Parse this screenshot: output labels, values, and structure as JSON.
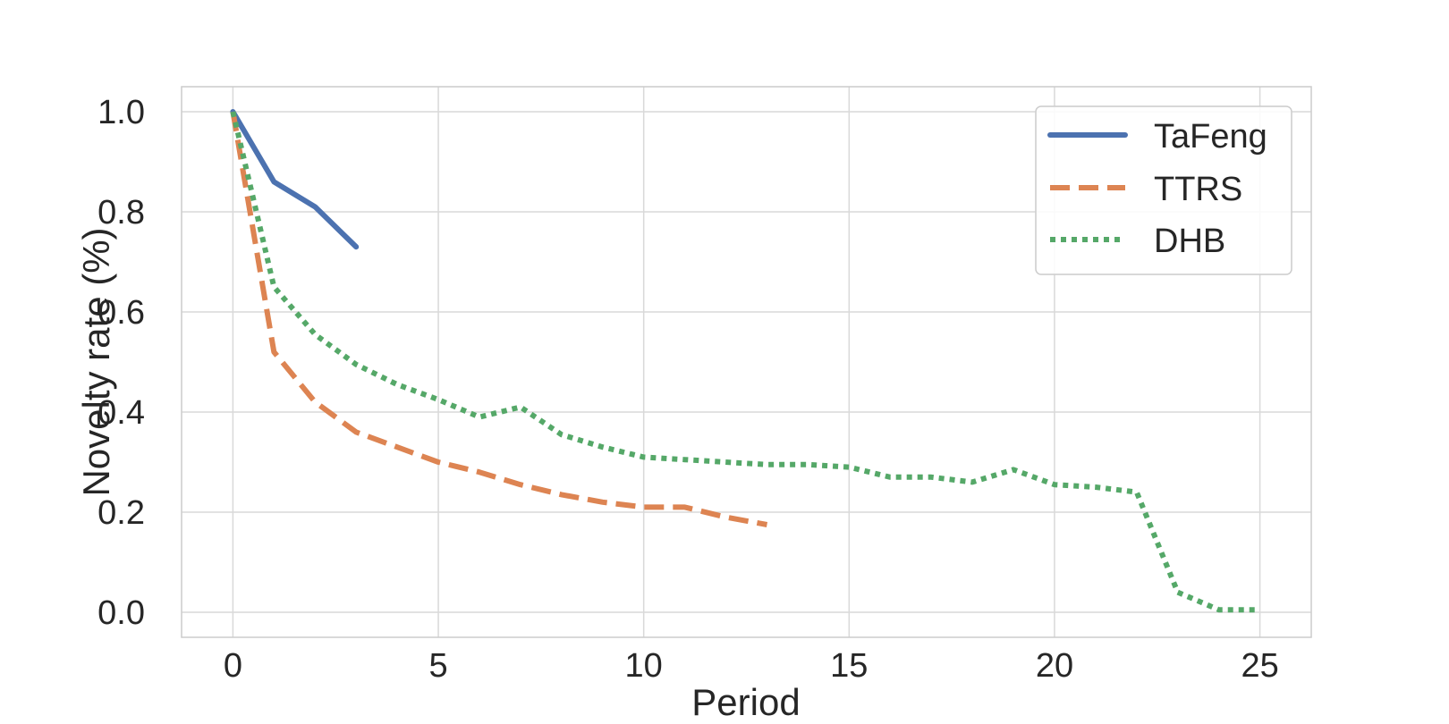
{
  "chart_data": {
    "type": "line",
    "xlabel": "Period",
    "ylabel": "Novelty rate (%)",
    "xlim": [
      -1.25,
      26.25
    ],
    "ylim": [
      -0.05,
      1.05
    ],
    "xticks": [
      0,
      5,
      10,
      15,
      20,
      25
    ],
    "yticks": [
      0.0,
      0.2,
      0.4,
      0.6,
      0.8,
      1.0
    ],
    "xtick_labels": [
      "0",
      "5",
      "10",
      "15",
      "20",
      "25"
    ],
    "ytick_labels": [
      "0.0",
      "0.2",
      "0.4",
      "0.6",
      "0.8",
      "1.0"
    ],
    "grid": true,
    "legend_position": "top-right",
    "series": [
      {
        "name": "TaFeng",
        "color": "#4c72b0",
        "dash": "solid",
        "x": [
          0,
          1,
          2,
          3
        ],
        "values": [
          1.0,
          0.86,
          0.81,
          0.73
        ]
      },
      {
        "name": "TTRS",
        "color": "#dd8452",
        "dash": "dashed",
        "x": [
          0,
          1,
          2,
          3,
          4,
          5,
          6,
          7,
          8,
          9,
          10,
          11,
          12,
          13
        ],
        "values": [
          1.0,
          0.52,
          0.42,
          0.36,
          0.33,
          0.3,
          0.28,
          0.255,
          0.235,
          0.22,
          0.21,
          0.21,
          0.19,
          0.175
        ]
      },
      {
        "name": "DHB",
        "color": "#55a868",
        "dash": "dotted",
        "x": [
          0,
          1,
          2,
          3,
          4,
          5,
          6,
          7,
          8,
          9,
          10,
          11,
          12,
          13,
          14,
          15,
          16,
          17,
          18,
          19,
          20,
          21,
          22,
          23,
          24,
          25
        ],
        "values": [
          1.0,
          0.65,
          0.555,
          0.495,
          0.455,
          0.425,
          0.39,
          0.41,
          0.355,
          0.33,
          0.31,
          0.305,
          0.3,
          0.295,
          0.295,
          0.29,
          0.27,
          0.27,
          0.26,
          0.285,
          0.255,
          0.25,
          0.24,
          0.04,
          0.005,
          0.005
        ]
      }
    ]
  }
}
